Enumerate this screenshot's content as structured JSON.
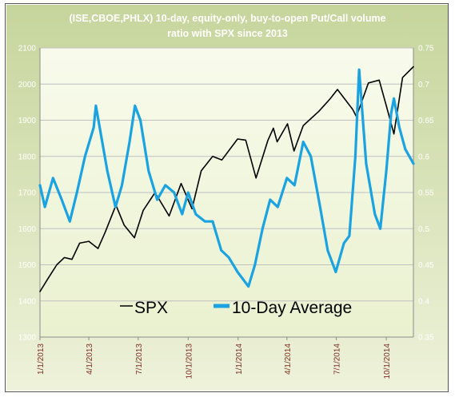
{
  "chart_data": {
    "type": "line",
    "title": "(ISE,CBOE,PHLX) 10-day, equity-only, buy-to-open Put/Call volume ratio with SPX since 2013",
    "title_lines": [
      "(ISE,CBOE,PHLX) 10-day, equity-only, buy-to-open Put/Call volume",
      "ratio with SPX since 2013"
    ],
    "x_tick_labels": [
      "1/1/2013",
      "4/1/2013",
      "7/1/2013",
      "10/1/2013",
      "1/1/2014",
      "4/1/2014",
      "7/1/2014",
      "10/1/2014"
    ],
    "x_range": [
      "2013-01-01",
      "2014-11-20"
    ],
    "y_left": {
      "min": 1300,
      "max": 2100,
      "ticks": [
        1300,
        1400,
        1500,
        1600,
        1700,
        1800,
        1900,
        2000,
        2100
      ]
    },
    "y_right": {
      "min": 0.35,
      "max": 0.75,
      "ticks": [
        "0.35",
        "0.4",
        "0.45",
        "0.5",
        "0.55",
        "0.6",
        "0.65",
        "0.7",
        "0.75"
      ]
    },
    "grid": "horizontal",
    "legend_position": "bottom-center",
    "series": [
      {
        "name": "SPX",
        "axis": "left",
        "color": "#000000",
        "points": [
          [
            "2013-01-01",
            1426
          ],
          [
            "2013-01-15",
            1460
          ],
          [
            "2013-02-01",
            1500
          ],
          [
            "2013-02-15",
            1520
          ],
          [
            "2013-03-01",
            1515
          ],
          [
            "2013-03-15",
            1560
          ],
          [
            "2013-04-01",
            1565
          ],
          [
            "2013-04-18",
            1545
          ],
          [
            "2013-05-01",
            1590
          ],
          [
            "2013-05-21",
            1665
          ],
          [
            "2013-06-05",
            1610
          ],
          [
            "2013-06-24",
            1575
          ],
          [
            "2013-07-10",
            1650
          ],
          [
            "2013-08-01",
            1700
          ],
          [
            "2013-08-27",
            1635
          ],
          [
            "2013-09-18",
            1725
          ],
          [
            "2013-10-08",
            1655
          ],
          [
            "2013-10-25",
            1760
          ],
          [
            "2013-11-15",
            1800
          ],
          [
            "2013-12-02",
            1790
          ],
          [
            "2013-12-31",
            1848
          ],
          [
            "2014-01-15",
            1845
          ],
          [
            "2014-02-03",
            1740
          ],
          [
            "2014-02-25",
            1845
          ],
          [
            "2014-03-07",
            1878
          ],
          [
            "2014-03-14",
            1840
          ],
          [
            "2014-04-02",
            1890
          ],
          [
            "2014-04-14",
            1815
          ],
          [
            "2014-05-01",
            1885
          ],
          [
            "2014-05-30",
            1925
          ],
          [
            "2014-06-20",
            1960
          ],
          [
            "2014-07-03",
            1985
          ],
          [
            "2014-07-31",
            1930
          ],
          [
            "2014-08-07",
            1910
          ],
          [
            "2014-08-29",
            2003
          ],
          [
            "2014-09-18",
            2011
          ],
          [
            "2014-10-01",
            1940
          ],
          [
            "2014-10-13",
            1874
          ],
          [
            "2014-10-15",
            1862
          ],
          [
            "2014-10-31",
            2018
          ],
          [
            "2014-11-20",
            2048
          ]
        ]
      },
      {
        "name": "10-Day Average",
        "axis": "right",
        "color": "#1aa3e0",
        "points": [
          [
            "2013-01-01",
            0.56
          ],
          [
            "2013-01-10",
            0.53
          ],
          [
            "2013-01-25",
            0.57
          ],
          [
            "2013-02-10",
            0.54
          ],
          [
            "2013-02-25",
            0.51
          ],
          [
            "2013-03-10",
            0.55
          ],
          [
            "2013-03-25",
            0.6
          ],
          [
            "2013-04-10",
            0.64
          ],
          [
            "2013-04-14",
            0.67
          ],
          [
            "2013-05-05",
            0.58
          ],
          [
            "2013-05-20",
            0.53
          ],
          [
            "2013-06-01",
            0.56
          ],
          [
            "2013-06-15",
            0.62
          ],
          [
            "2013-06-25",
            0.67
          ],
          [
            "2013-07-05",
            0.65
          ],
          [
            "2013-07-20",
            0.58
          ],
          [
            "2013-08-05",
            0.54
          ],
          [
            "2013-08-20",
            0.56
          ],
          [
            "2013-09-05",
            0.55
          ],
          [
            "2013-09-20",
            0.52
          ],
          [
            "2013-10-01",
            0.55
          ],
          [
            "2013-10-15",
            0.52
          ],
          [
            "2013-11-01",
            0.51
          ],
          [
            "2013-11-15",
            0.51
          ],
          [
            "2013-12-01",
            0.47
          ],
          [
            "2013-12-15",
            0.46
          ],
          [
            "2013-12-31",
            0.44
          ],
          [
            "2014-01-10",
            0.43
          ],
          [
            "2014-01-20",
            0.42
          ],
          [
            "2014-02-01",
            0.45
          ],
          [
            "2014-02-15",
            0.5
          ],
          [
            "2014-03-01",
            0.54
          ],
          [
            "2014-03-15",
            0.53
          ],
          [
            "2014-04-01",
            0.57
          ],
          [
            "2014-04-15",
            0.56
          ],
          [
            "2014-05-01",
            0.62
          ],
          [
            "2014-05-15",
            0.6
          ],
          [
            "2014-06-01",
            0.53
          ],
          [
            "2014-06-15",
            0.47
          ],
          [
            "2014-06-30",
            0.44
          ],
          [
            "2014-07-15",
            0.48
          ],
          [
            "2014-07-25",
            0.49
          ],
          [
            "2014-08-05",
            0.6
          ],
          [
            "2014-08-12",
            0.72
          ],
          [
            "2014-08-25",
            0.59
          ],
          [
            "2014-09-10",
            0.52
          ],
          [
            "2014-09-20",
            0.5
          ],
          [
            "2014-10-01",
            0.58
          ],
          [
            "2014-10-10",
            0.66
          ],
          [
            "2014-10-15",
            0.68
          ],
          [
            "2014-10-25",
            0.64
          ],
          [
            "2014-11-05",
            0.61
          ],
          [
            "2014-11-20",
            0.59
          ]
        ]
      }
    ]
  }
}
